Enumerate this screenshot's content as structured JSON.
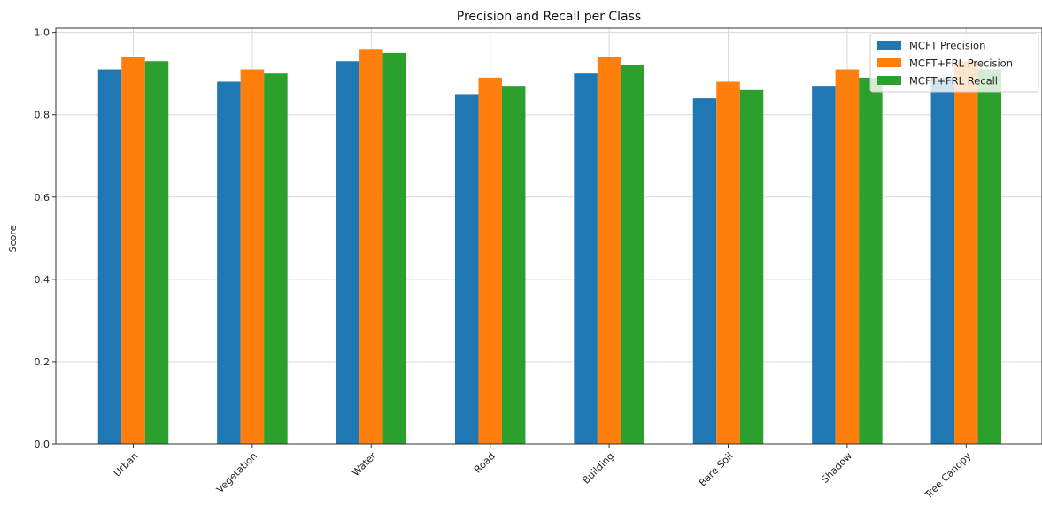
{
  "chart_data": {
    "type": "bar",
    "title": "Precision and Recall per Class",
    "xlabel": "",
    "ylabel": "Score",
    "ylim": [
      0,
      1.0
    ],
    "yticks": [
      "0.0",
      "0.2",
      "0.4",
      "0.6",
      "0.8",
      "1.0"
    ],
    "grid": true,
    "legend_position": "top-right",
    "categories": [
      "Urban",
      "Vegetation",
      "Water",
      "Road",
      "Building",
      "Bare Soil",
      "Shadow",
      "Tree Canopy"
    ],
    "series": [
      {
        "name": "MCFT Precision",
        "color": "#1f77b4",
        "values": [
          0.91,
          0.88,
          0.93,
          0.85,
          0.9,
          0.84,
          0.87,
          0.89
        ]
      },
      {
        "name": "MCFT+FRL Precision",
        "color": "#ff7f0e",
        "values": [
          0.94,
          0.91,
          0.96,
          0.89,
          0.94,
          0.88,
          0.91,
          0.93
        ]
      },
      {
        "name": "MCFT+FRL Recall",
        "color": "#2ca02c",
        "values": [
          0.93,
          0.9,
          0.95,
          0.87,
          0.92,
          0.86,
          0.89,
          0.91
        ]
      }
    ]
  }
}
